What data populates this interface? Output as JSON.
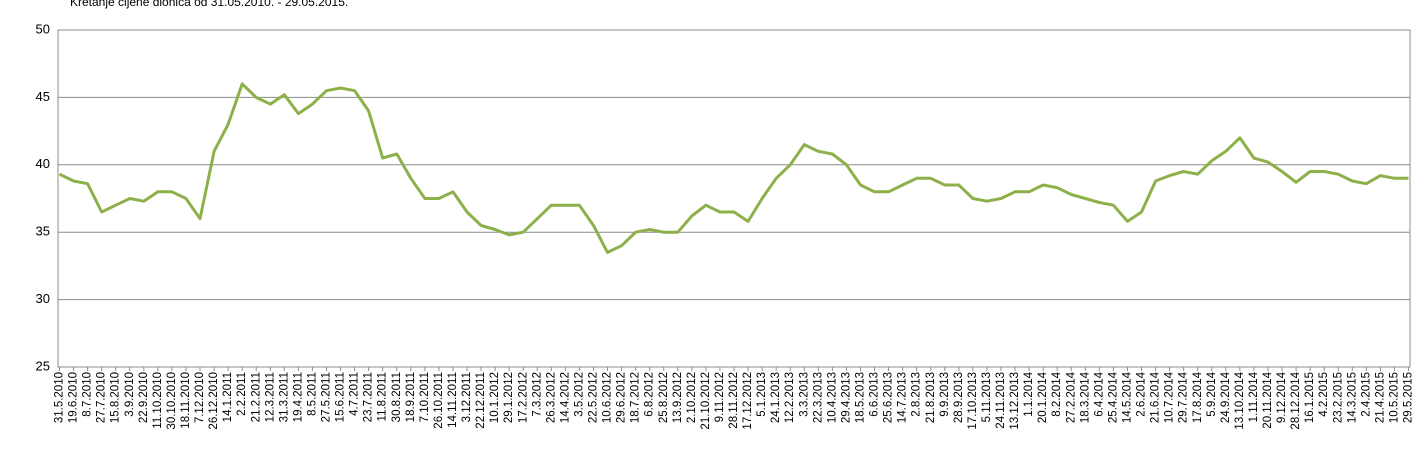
{
  "chart_data": {
    "type": "line",
    "title": "Kretanje cijene dionica od 31.05.2010. - 29.05.2015.",
    "categories": [
      "31.5.2010",
      "19.6.2010",
      "8.7.2010",
      "27.7.2010",
      "15.8.2010",
      "3.9.2010",
      "22.9.2010",
      "11.10.2010",
      "30.10.2010",
      "18.11.2010",
      "7.12.2010",
      "26.12.2010",
      "14.1.2011",
      "2.2.2011",
      "21.2.2011",
      "12.3.2011",
      "31.3.2011",
      "19.4.2011",
      "8.5.2011",
      "27.5.2011",
      "15.6.2011",
      "4.7.2011",
      "23.7.2011",
      "11.8.2011",
      "30.8.2011",
      "18.9.2011",
      "7.10.2011",
      "26.10.2011",
      "14.11.2011",
      "3.12.2011",
      "22.12.2011",
      "10.1.2012",
      "29.1.2012",
      "17.2.2012",
      "7.3.2012",
      "26.3.2012",
      "14.4.2012",
      "3.5.2012",
      "22.5.2012",
      "10.6.2012",
      "29.6.2012",
      "18.7.2012",
      "6.8.2012",
      "25.8.2012",
      "13.9.2012",
      "2.10.2012",
      "21.10.2012",
      "9.11.2012",
      "28.11.2012",
      "17.12.2012",
      "5.1.2013",
      "24.1.2013",
      "12.2.2013",
      "3.3.2013",
      "22.3.2013",
      "10.4.2013",
      "29.4.2013",
      "18.5.2013",
      "6.6.2013",
      "25.6.2013",
      "14.7.2013",
      "2.8.2013",
      "21.8.2013",
      "9.9.2013",
      "28.9.2013",
      "17.10.2013",
      "5.11.2013",
      "24.11.2013",
      "13.12.2013",
      "1.1.2014",
      "20.1.2014",
      "8.2.2014",
      "27.2.2014",
      "18.3.2014",
      "6.4.2014",
      "25.4.2014",
      "14.5.2014",
      "2.6.2014",
      "21.6.2014",
      "10.7.2014",
      "29.7.2014",
      "17.8.2014",
      "5.9.2014",
      "24.9.2014",
      "13.10.2014",
      "1.11.2014",
      "20.11.2014",
      "9.12.2014",
      "28.12.2014",
      "16.1.2015",
      "4.2.2015",
      "23.2.2015",
      "14.3.2015",
      "2.4.2015",
      "21.4.2015",
      "10.5.2015",
      "29.5.2015"
    ],
    "series": [
      {
        "color": "#8db04a",
        "values": [
          39.3,
          38.8,
          38.6,
          36.5,
          37.0,
          37.5,
          37.3,
          38.0,
          38.0,
          37.5,
          36.0,
          41.0,
          43.0,
          46.0,
          45.0,
          44.5,
          45.2,
          43.8,
          44.5,
          45.5,
          45.7,
          45.5,
          44.0,
          40.5,
          40.8,
          39.0,
          37.5,
          37.5,
          38.0,
          36.5,
          35.5,
          35.2,
          34.8,
          35.0,
          36.0,
          37.0,
          37.0,
          37.0,
          35.5,
          33.5,
          34.0,
          35.0,
          35.2,
          35.0,
          35.0,
          36.2,
          37.0,
          36.5,
          36.5,
          35.8,
          37.5,
          39.0,
          40.0,
          41.5,
          41.0,
          40.8,
          40.0,
          38.5,
          38.0,
          38.0,
          38.5,
          39.0,
          39.0,
          38.5,
          38.5,
          37.5,
          37.3,
          37.5,
          38.0,
          38.0,
          38.5,
          38.3,
          37.8,
          37.5,
          37.2,
          37.0,
          35.8,
          36.5,
          38.8,
          39.2,
          39.5,
          39.3,
          40.3,
          41.0,
          42.0,
          40.5,
          40.2,
          39.5,
          38.7,
          39.5,
          39.5,
          39.3,
          38.8,
          38.6,
          39.2,
          39.0,
          39.0
        ]
      }
    ],
    "ylim": [
      25,
      50
    ],
    "yticks": [
      25,
      30,
      35,
      40,
      45,
      50
    ],
    "grid": true
  }
}
